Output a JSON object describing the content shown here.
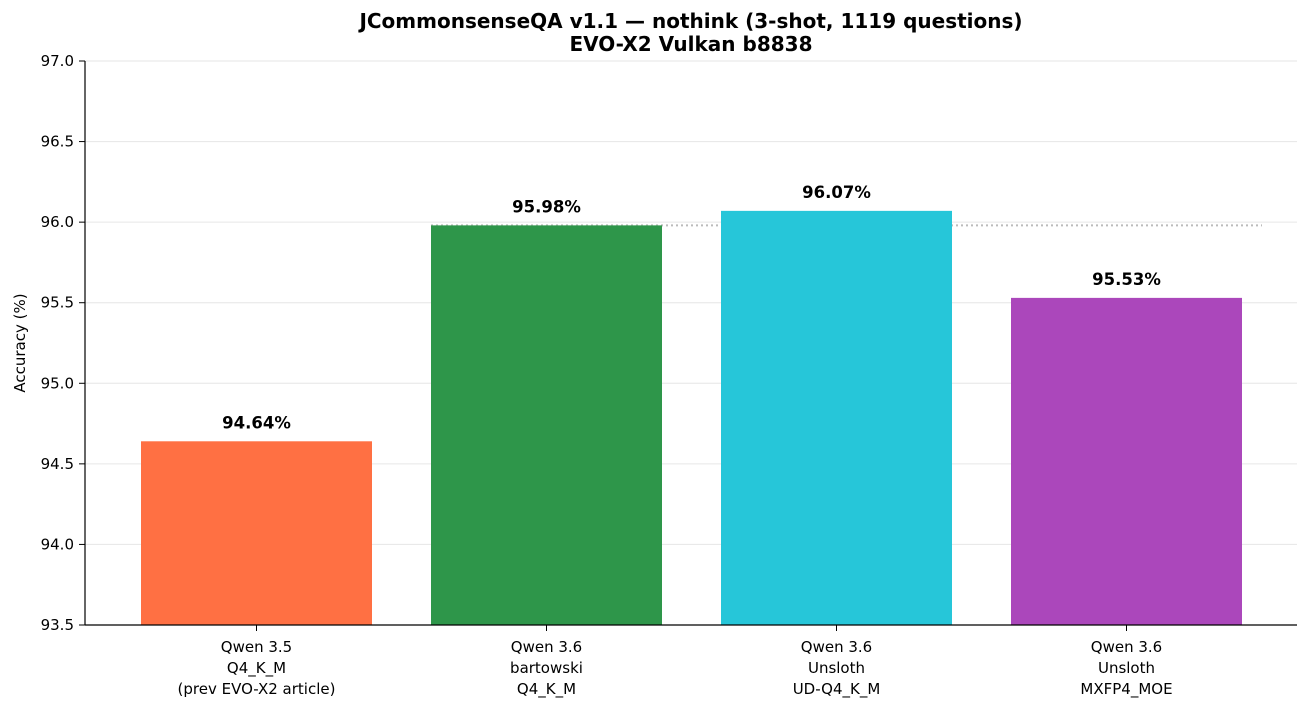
{
  "chart_data": {
    "type": "bar",
    "title": "JCommonsenseQA v1.1 — nothink (3-shot, 1119 questions)",
    "subtitle": "EVO-X2 Vulkan b8838",
    "xlabel": "",
    "ylabel": "Accuracy (%)",
    "ylim": [
      93.5,
      97.0
    ],
    "yticks": [
      "93.5",
      "94.0",
      "94.5",
      "95.0",
      "95.5",
      "96.0",
      "96.5",
      "97.0"
    ],
    "grid": true,
    "categories": [
      [
        "Qwen 3.5",
        "Q4_K_M",
        "(prev EVO-X2 article)"
      ],
      [
        "Qwen 3.6",
        "bartowski",
        "Q4_K_M"
      ],
      [
        "Qwen 3.6",
        "Unsloth",
        "UD-Q4_K_M"
      ],
      [
        "Qwen 3.6",
        "Unsloth",
        "MXFP4_MOE"
      ]
    ],
    "values": [
      94.64,
      95.98,
      96.07,
      95.53
    ],
    "value_labels": [
      "94.64%",
      "95.98%",
      "96.07%",
      "95.53%"
    ],
    "colors": [
      "#ff7043",
      "#2e964a",
      "#26c6d9",
      "#ab47bb"
    ],
    "reference_line": {
      "value": 95.98,
      "style": "dotted",
      "color": "#bbbbbb",
      "from_category": 1,
      "to_category": 3
    }
  }
}
